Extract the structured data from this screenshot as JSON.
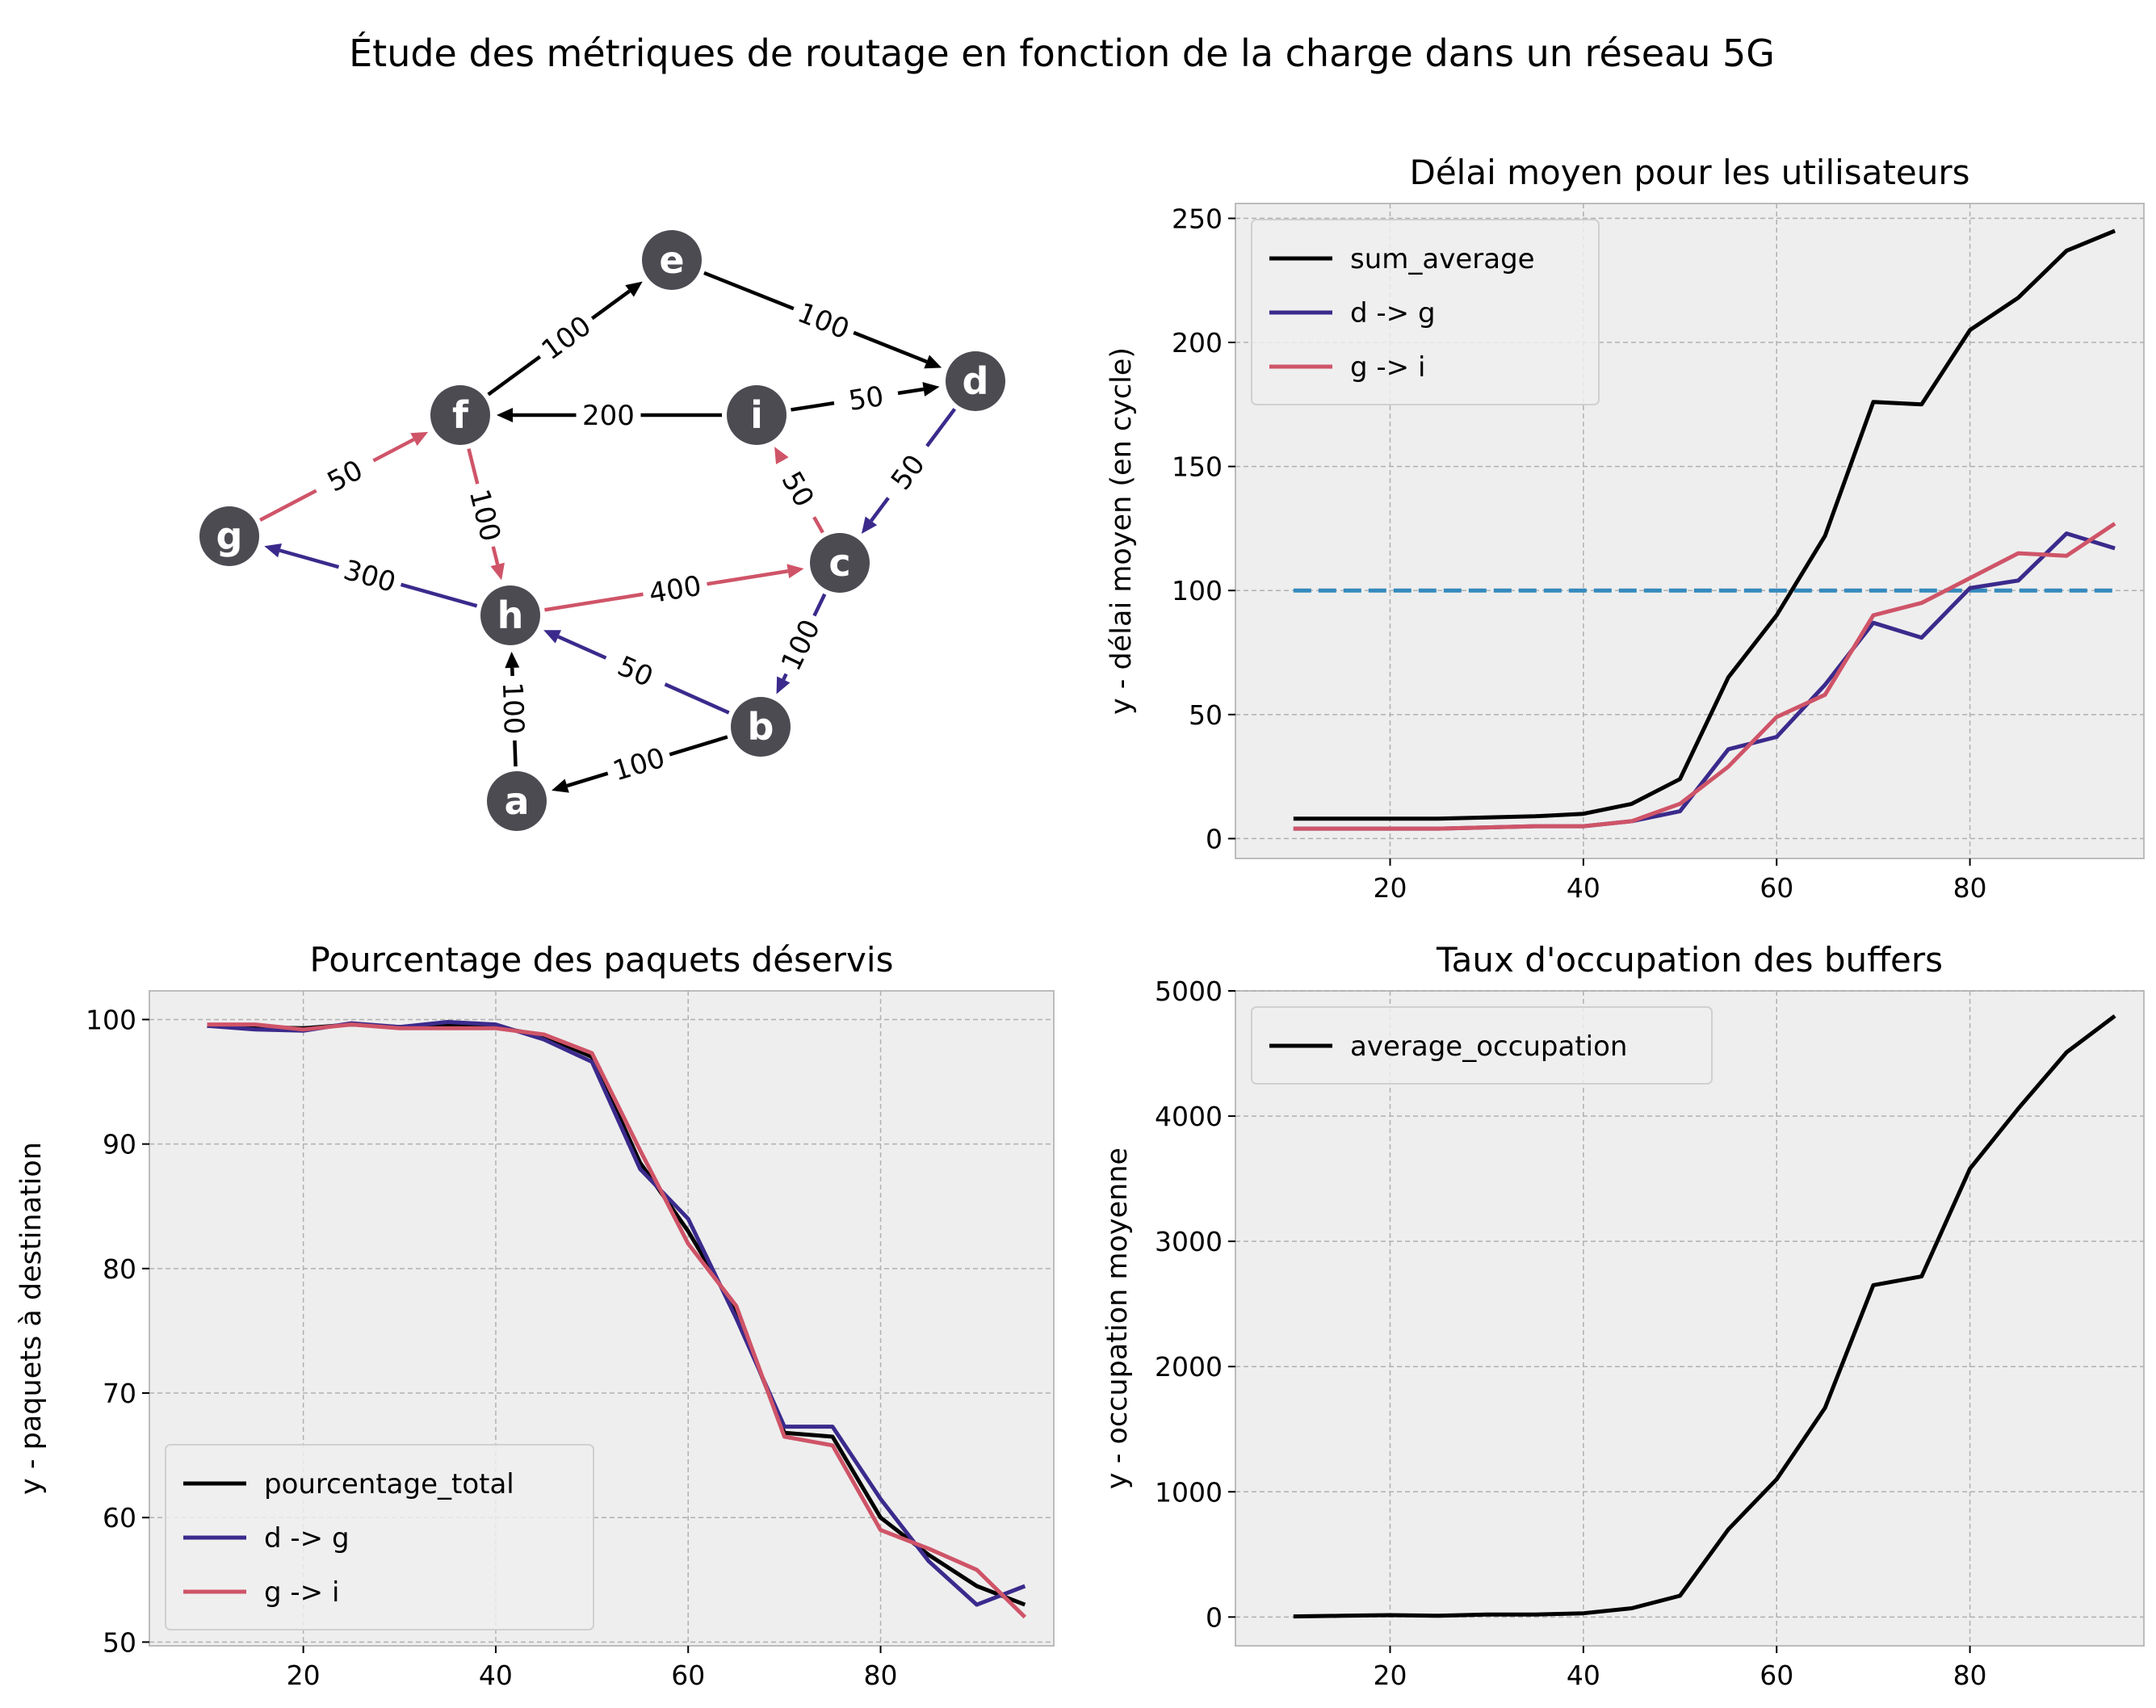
{
  "suptitle": "Étude des métriques de routage en fonction de la charge dans un réseau 5G",
  "colors": {
    "black": "#000000",
    "purple": "#3b2a8c",
    "pink": "#cf5468",
    "threshold": "#348abd",
    "node": "#4d4b52",
    "axes_bg": "#eeeeee",
    "grid": "#b0b0b0"
  },
  "network": {
    "nodes": [
      "a",
      "b",
      "c",
      "d",
      "e",
      "f",
      "g",
      "h",
      "i"
    ],
    "edges": [
      {
        "from": "e",
        "to": "d",
        "label": "100",
        "color": "black"
      },
      {
        "from": "f",
        "to": "e",
        "label": "100",
        "color": "black"
      },
      {
        "from": "i",
        "to": "f",
        "label": "200",
        "color": "black"
      },
      {
        "from": "i",
        "to": "d",
        "label": "50",
        "color": "black"
      },
      {
        "from": "g",
        "to": "f",
        "label": "50",
        "color": "pink"
      },
      {
        "from": "f",
        "to": "h",
        "label": "100",
        "color": "pink"
      },
      {
        "from": "c",
        "to": "i",
        "label": "50",
        "color": "pink"
      },
      {
        "from": "d",
        "to": "c",
        "label": "50",
        "color": "purple"
      },
      {
        "from": "h",
        "to": "g",
        "label": "300",
        "color": "purple"
      },
      {
        "from": "h",
        "to": "c",
        "label": "400",
        "color": "pink"
      },
      {
        "from": "c",
        "to": "b",
        "label": "100",
        "color": "purple"
      },
      {
        "from": "b",
        "to": "h",
        "label": "50",
        "color": "purple"
      },
      {
        "from": "a",
        "to": "h",
        "label": "100",
        "color": "black"
      },
      {
        "from": "b",
        "to": "a",
        "label": "100",
        "color": "black"
      }
    ]
  },
  "chart_data": [
    {
      "id": "delay",
      "type": "line",
      "title": "Délai moyen pour les utilisateurs",
      "xlabel": "",
      "ylabel": "y - délai moyen (en cycle)",
      "xlim": [
        4,
        98
      ],
      "ylim": [
        -8,
        256
      ],
      "xticks": [
        20,
        40,
        60,
        80
      ],
      "yticks": [
        0,
        50,
        100,
        150,
        200,
        250
      ],
      "grid": true,
      "legend": "top-left",
      "x": [
        10,
        15,
        20,
        25,
        30,
        35,
        40,
        45,
        50,
        55,
        60,
        65,
        70,
        75,
        80,
        85,
        90,
        95
      ],
      "series": [
        {
          "name": "sum_average",
          "color": "black",
          "values": [
            8,
            8,
            8,
            8,
            8.5,
            9,
            10,
            14,
            24,
            65,
            90,
            122,
            176,
            175,
            205,
            218,
            237,
            245
          ]
        },
        {
          "name": "d -> g",
          "color": "purple",
          "values": [
            4,
            4,
            4,
            4,
            4.5,
            5,
            5,
            7,
            11,
            36,
            41,
            62,
            87,
            81,
            101,
            104,
            123,
            117
          ]
        },
        {
          "name": "g -> i",
          "color": "pink",
          "values": [
            4,
            4,
            4,
            4,
            4.5,
            5,
            5,
            7,
            14,
            29,
            49,
            58,
            90,
            95,
            105,
            115,
            114,
            127
          ]
        }
      ],
      "hline": {
        "y": 100,
        "x_from": 10,
        "x_to": 95,
        "color": "threshold",
        "style": "dashed"
      }
    },
    {
      "id": "packets",
      "type": "line",
      "title": "Pourcentage des paquets déservis",
      "xlabel": "",
      "ylabel": "y - paquets à destination",
      "xlim": [
        4,
        98
      ],
      "ylim": [
        49.7,
        102.3
      ],
      "xticks": [
        20,
        40,
        60,
        80
      ],
      "yticks": [
        50,
        60,
        70,
        80,
        90,
        100
      ],
      "grid": true,
      "legend": "bottom-left",
      "x": [
        10,
        15,
        20,
        25,
        30,
        35,
        40,
        45,
        50,
        55,
        60,
        65,
        70,
        75,
        80,
        85,
        90,
        95
      ],
      "series": [
        {
          "name": "pourcentage_total",
          "color": "black",
          "values": [
            99.5,
            99.4,
            99.3,
            99.6,
            99.4,
            99.5,
            99.4,
            98.7,
            97.0,
            88.5,
            83.0,
            76.5,
            66.8,
            66.5,
            60.0,
            57.0,
            54.5,
            53.0
          ]
        },
        {
          "name": "d -> g",
          "color": "purple",
          "values": [
            99.5,
            99.2,
            99.1,
            99.7,
            99.4,
            99.8,
            99.6,
            98.4,
            96.6,
            88.0,
            84.0,
            76.0,
            67.3,
            67.3,
            61.5,
            56.5,
            53.0,
            54.5
          ]
        },
        {
          "name": "g -> i",
          "color": "pink",
          "values": [
            99.6,
            99.6,
            99.2,
            99.6,
            99.3,
            99.3,
            99.3,
            98.8,
            97.3,
            89.5,
            82.0,
            77.0,
            66.5,
            65.8,
            59.0,
            57.5,
            55.8,
            52.0
          ]
        }
      ]
    },
    {
      "id": "buffers",
      "type": "line",
      "title": "Taux d'occupation des buffers",
      "xlabel": "",
      "ylabel": "y - occupation moyenne",
      "xlim": [
        4,
        98
      ],
      "ylim": [
        -230,
        5000
      ],
      "xticks": [
        20,
        40,
        60,
        80
      ],
      "yticks": [
        0,
        1000,
        2000,
        3000,
        4000,
        5000
      ],
      "grid": true,
      "legend": "top-left",
      "x": [
        10,
        15,
        20,
        25,
        30,
        35,
        40,
        45,
        50,
        55,
        60,
        65,
        70,
        75,
        80,
        85,
        90,
        95
      ],
      "series": [
        {
          "name": "average_occupation",
          "color": "black",
          "values": [
            5,
            10,
            15,
            10,
            20,
            20,
            30,
            70,
            170,
            700,
            1100,
            1670,
            2650,
            2720,
            3580,
            4060,
            4510,
            4800
          ]
        }
      ]
    }
  ]
}
